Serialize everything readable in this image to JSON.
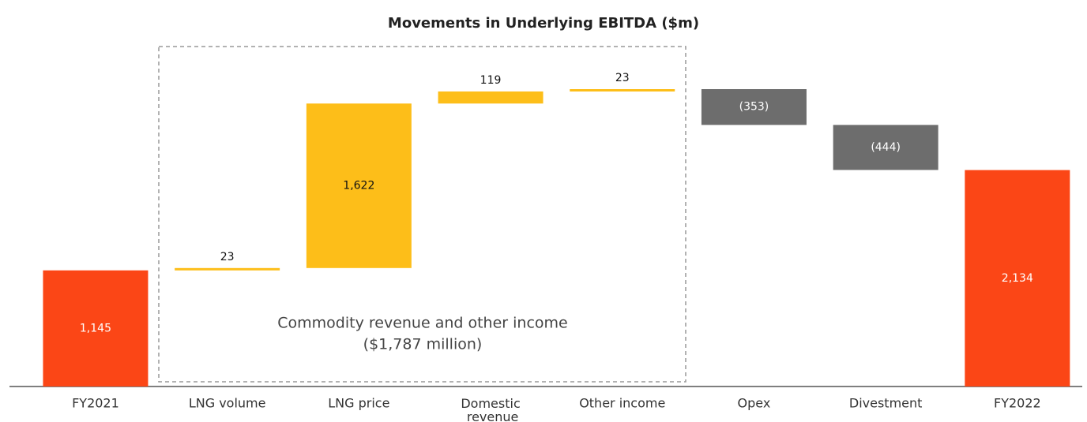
{
  "chart_data": {
    "type": "waterfall",
    "title": "Movements in Underlying EBITDA ($m)",
    "categories": [
      "FY2021",
      "LNG volume",
      "LNG price",
      "Domestic revenue",
      "Other income",
      "Opex",
      "Divestment",
      "FY2022"
    ],
    "values": [
      1145,
      23,
      1622,
      119,
      23,
      -353,
      -444,
      2134
    ],
    "value_labels": [
      "1,145",
      "23",
      "1,622",
      "119",
      "23",
      "(353)",
      "(444)",
      "2,134"
    ],
    "measure": [
      "total",
      "relative",
      "relative",
      "relative",
      "relative",
      "relative",
      "relative",
      "total"
    ],
    "colors": {
      "total": "#fb4616",
      "increase": "#fdbe19",
      "decrease": "#6d6d6d"
    },
    "annotation": [
      "Commodity revenue and other income",
      "($1,787 million)"
    ]
  }
}
